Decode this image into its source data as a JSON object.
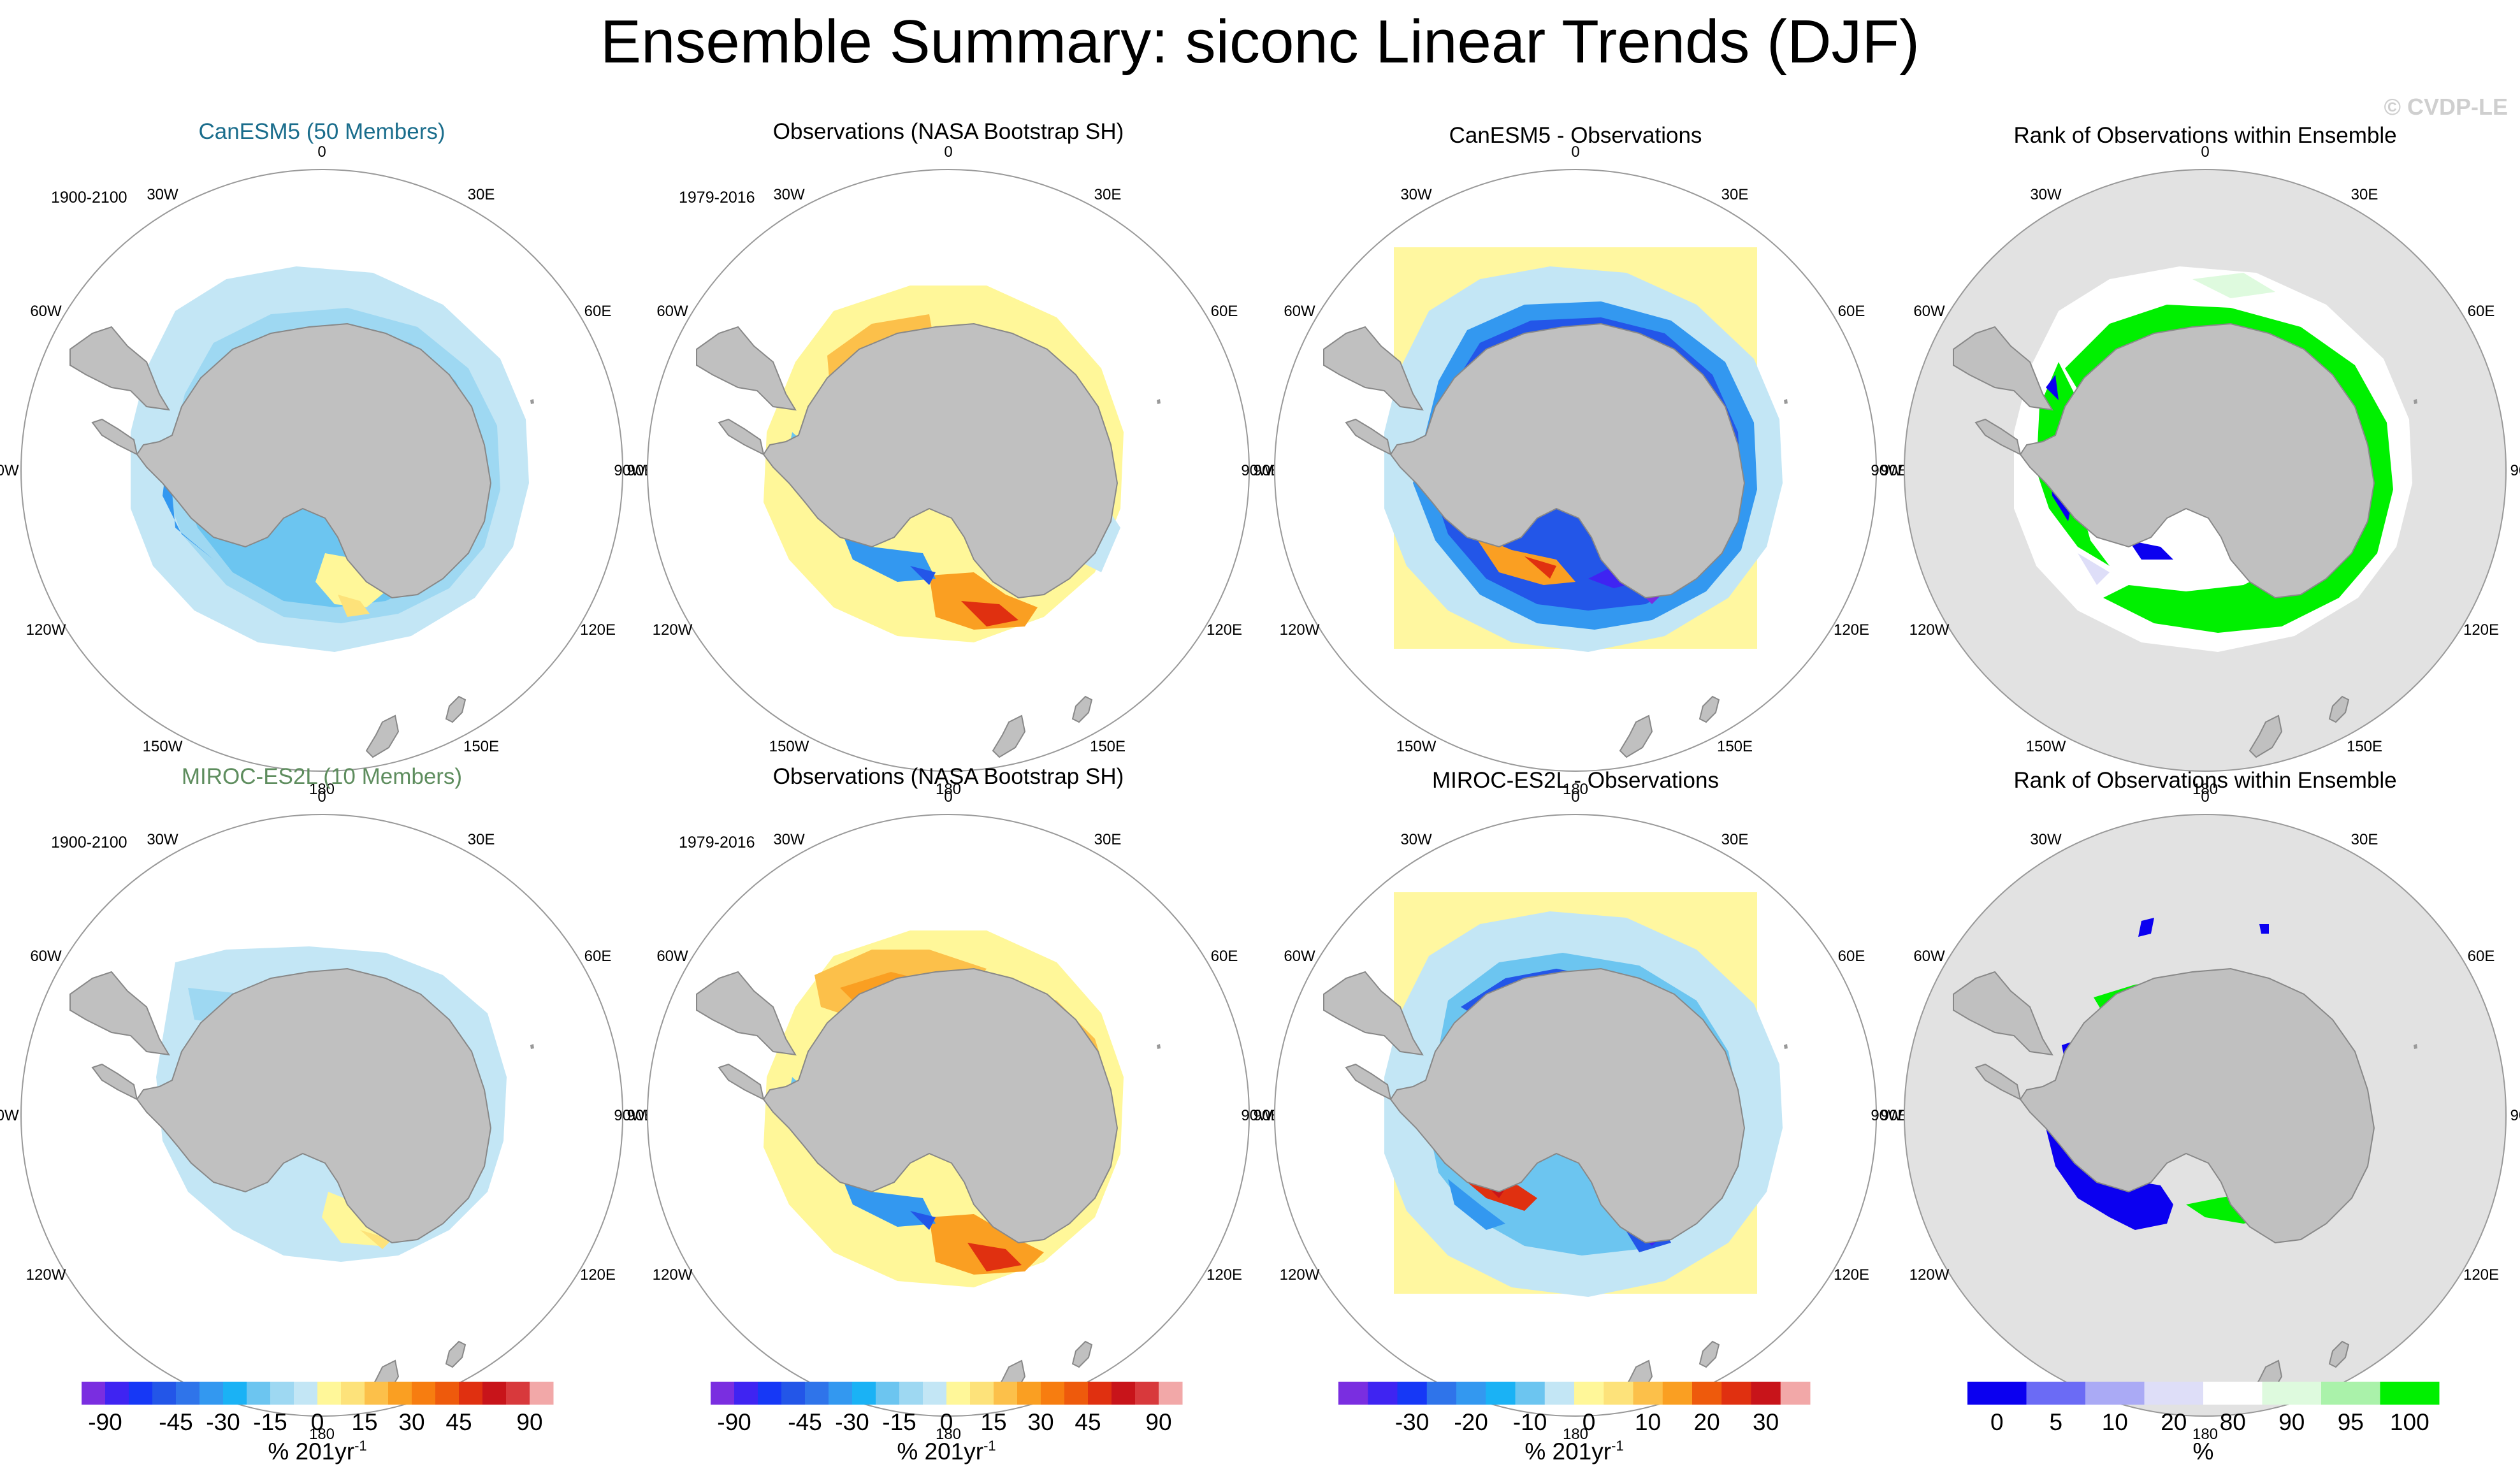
{
  "title": "Ensemble Summary: siconc Linear Trends (DJF)",
  "watermark": "© CVDP-LE",
  "colors": {
    "land": "#c0c0c0",
    "title_canesm5": "#1a6d8c",
    "title_miroc": "#5e8d5e",
    "rank_background": "#e2e2e2",
    "diff_background": "#fff7a0"
  },
  "longitude_labels": [
    "0",
    "30E",
    "60E",
    "90E",
    "120E",
    "150E",
    "180",
    "150W",
    "120W",
    "90W",
    "60W",
    "30W"
  ],
  "rows": [
    {
      "model": "CanESM5",
      "panels": [
        {
          "title": "CanESM5 (50 Members)",
          "period": "1900-2100",
          "kind": "model_trend",
          "pattern": "canesm5"
        },
        {
          "title": "Observations (NASA Bootstrap SH)",
          "period": "1979-2016",
          "kind": "obs_trend",
          "pattern": "obs"
        },
        {
          "title": "CanESM5 - Observations",
          "period": "",
          "kind": "difference",
          "pattern": "diff1"
        },
        {
          "title": "Rank of Observations within Ensemble",
          "period": "",
          "kind": "rank",
          "pattern": "rank1"
        }
      ]
    },
    {
      "model": "MIROC-ES2L",
      "panels": [
        {
          "title": "MIROC-ES2L (10 Members)",
          "period": "1900-2100",
          "kind": "model_trend",
          "pattern": "miroc"
        },
        {
          "title": "Observations (NASA Bootstrap SH)",
          "period": "1979-2016",
          "kind": "obs_trend",
          "pattern": "obs2"
        },
        {
          "title": "MIROC-ES2L - Observations",
          "period": "",
          "kind": "difference",
          "pattern": "diff2"
        },
        {
          "title": "Rank of Observations within Ensemble",
          "period": "",
          "kind": "rank",
          "pattern": "rank2"
        }
      ]
    }
  ],
  "chart_data": {
    "type": "heatmap",
    "projection": "south polar stereographic",
    "variable": "siconc",
    "season": "DJF",
    "colorbars": [
      {
        "id": "trend",
        "label": "% 201yr",
        "superscript": "-1",
        "levels": [
          -90,
          -75,
          -60,
          -45,
          -37.5,
          -30,
          -22.5,
          -15,
          -7.5,
          0,
          7.5,
          15,
          22.5,
          30,
          37.5,
          45,
          60,
          75,
          90
        ],
        "tick_labels": [
          "-90",
          "-45",
          "-30",
          "-15",
          "0",
          "15",
          "30",
          "45",
          "90"
        ],
        "tick_values": [
          -90,
          -45,
          -30,
          -15,
          0,
          15,
          30,
          45,
          90
        ],
        "colors": [
          "#7a2ee0",
          "#3f24f2",
          "#1638f6",
          "#2356e8",
          "#2f74ea",
          "#3398f0",
          "#1ab2f5",
          "#6cc5f0",
          "#9ed8f2",
          "#c3e6f5",
          "#fff799",
          "#fde27a",
          "#fcc04a",
          "#fa9f22",
          "#f77d10",
          "#ee5a0c",
          "#e03010",
          "#c8141a",
          "#d8393c",
          "#f2a8a8"
        ]
      },
      {
        "id": "diff",
        "label": "% 201yr",
        "superscript": "-1",
        "levels": [
          -40,
          -35,
          -30,
          -25,
          -20,
          -15,
          -10,
          -5,
          0,
          5,
          10,
          15,
          20,
          25,
          30,
          35,
          40
        ],
        "tick_labels": [
          "-30",
          "-20",
          "-10",
          "0",
          "10",
          "20",
          "30"
        ],
        "tick_values": [
          -30,
          -20,
          -10,
          0,
          10,
          20,
          30
        ],
        "colors": [
          "#7a2ee0",
          "#3f24f2",
          "#1638f6",
          "#2f74ea",
          "#3398f0",
          "#1ab2f5",
          "#6cc5f0",
          "#c3e6f5",
          "#fff799",
          "#fde27a",
          "#fcc04a",
          "#fa9f22",
          "#ee5a0c",
          "#e03010",
          "#c8141a",
          "#f2a8a8"
        ]
      },
      {
        "id": "rank",
        "label": "%",
        "superscript": "",
        "levels": [
          0,
          5,
          10,
          20,
          80,
          90,
          95,
          100
        ],
        "tick_labels": [
          "0",
          "5",
          "10",
          "20",
          "80",
          "90",
          "95",
          "100"
        ],
        "tick_values": [
          0,
          5,
          10,
          20,
          80,
          90,
          95,
          100
        ],
        "colors": [
          "#0b00f0",
          "#6b6bf5",
          "#aaaaf5",
          "#dedef8",
          "#ffffff",
          "#defade",
          "#aaf2aa",
          "#00f000"
        ]
      }
    ]
  }
}
